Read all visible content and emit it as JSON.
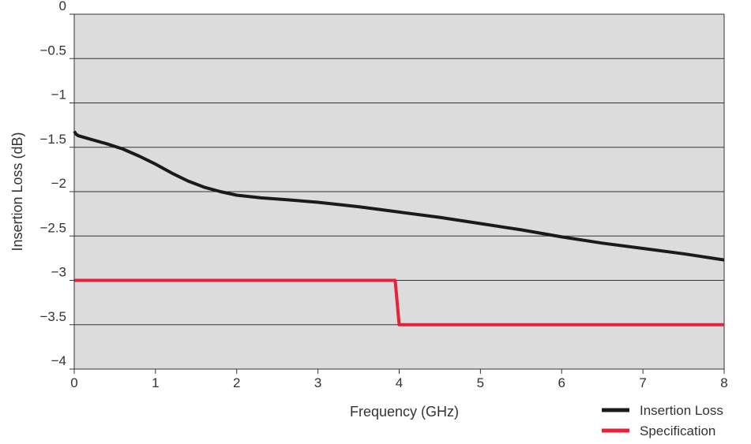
{
  "chart_data": {
    "type": "line",
    "title": "",
    "xlabel": "Frequency (GHz)",
    "ylabel": "Insertion Loss (dB)",
    "xlim": [
      0,
      8
    ],
    "ylim": [
      -4,
      0
    ],
    "x_ticks": [
      "0",
      "1",
      "2",
      "3",
      "4",
      "5",
      "6",
      "7",
      "8"
    ],
    "y_ticks": [
      "0",
      "−0.5",
      "−1",
      "−1.5",
      "−2",
      "−2.5",
      "−3",
      "−3.5",
      "−4"
    ],
    "grid": "horizontal",
    "legend_position": "bottom-right",
    "series": [
      {
        "name": "Insertion Loss",
        "color": "#1a1a1a",
        "x": [
          0,
          0.02,
          0.05,
          0.2,
          0.4,
          0.6,
          0.8,
          1.0,
          1.2,
          1.4,
          1.6,
          1.8,
          2.0,
          2.3,
          2.6,
          3.0,
          3.5,
          4.0,
          4.5,
          5.0,
          5.5,
          6.0,
          6.5,
          7.0,
          7.5,
          8.0
        ],
        "y": [
          -1.32,
          -1.35,
          -1.37,
          -1.41,
          -1.46,
          -1.52,
          -1.6,
          -1.69,
          -1.79,
          -1.88,
          -1.95,
          -2.0,
          -2.04,
          -2.07,
          -2.09,
          -2.12,
          -2.17,
          -2.23,
          -2.29,
          -2.36,
          -2.43,
          -2.51,
          -2.58,
          -2.64,
          -2.7,
          -2.77
        ]
      },
      {
        "name": "Specification",
        "color": "#e8203a",
        "x": [
          0,
          3.95,
          4.0,
          8.0
        ],
        "y": [
          -3.0,
          -3.0,
          -3.5,
          -3.5
        ]
      }
    ]
  }
}
